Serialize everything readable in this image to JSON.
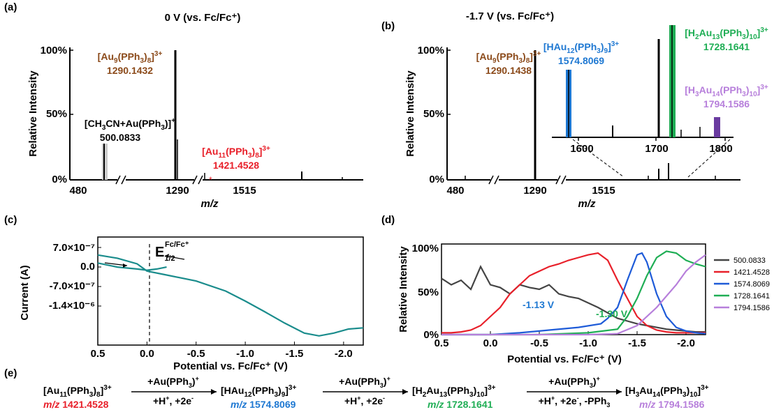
{
  "panels": {
    "a": {
      "letter": "(a)",
      "title": "0 V (vs. Fc/Fc⁺)",
      "ylabel": "Relative Intensity",
      "xlabel": "m/z",
      "yticks": [
        "100%",
        "50%",
        "0%"
      ],
      "xticks": [
        "480",
        "1290",
        "1515"
      ],
      "annotations": [
        {
          "formula": "[Au9(PPh3)8]3+",
          "mz": "1290.1432",
          "color": "#8B4A1A"
        },
        {
          "formula": "[CH3CN+Au(PPh3)]+",
          "mz": "500.0833",
          "color": "#000000"
        },
        {
          "formula": "[Au11(PPh3)8]3+",
          "mz": "1421.4528",
          "color": "#E8202A"
        }
      ]
    },
    "b": {
      "letter": "(b)",
      "title": "-1.7 V (vs. Fc/Fc⁺)",
      "ylabel": "Relative Intensity",
      "xlabel": "m/z",
      "yticks": [
        "100%",
        "50%",
        "0%"
      ],
      "xticks": [
        "480",
        "1290",
        "1515"
      ],
      "inset_xticks": [
        "1600",
        "1700",
        "1800"
      ],
      "annotations": [
        {
          "formula": "[Au9(PPh3)8]3+",
          "mz": "1290.1438",
          "color": "#8B4A1A"
        },
        {
          "formula": "[HAu12(PPh3)9]3+",
          "mz": "1574.8069",
          "color": "#1E78D2"
        },
        {
          "formula": "[H2Au13(PPh3)10]3+",
          "mz": "1728.1641",
          "color": "#1FAE55"
        },
        {
          "formula": "[H3Au14(PPh3)10]3+",
          "mz": "1794.1586",
          "color": "#B77FDB"
        }
      ]
    },
    "c": {
      "letter": "(c)",
      "ylabel": "Current (A)",
      "xlabel": "Potential vs. Fc/Fc⁺ (V)",
      "yticks": [
        "7.0×10⁻⁷",
        "0.0",
        "-7.0×10⁻⁷",
        "-1.4×10⁻⁶"
      ],
      "xticks": [
        "0.5",
        "0.0",
        "-0.5",
        "-1.0",
        "-1.5",
        "-2.0"
      ],
      "e_half": "E",
      "e_half_sub": "1/2",
      "e_half_sup": "Fc/Fc⁺",
      "line_color": "#1A8C8C"
    },
    "d": {
      "letter": "(d)",
      "ylabel": "Relative Intensity",
      "xlabel": "Potential vs. Fc/Fc⁺ (V)",
      "yticks": [
        "100%",
        "50%",
        "0%"
      ],
      "xticks": [
        "0.5",
        "0.0",
        "-0.5",
        "-1.0",
        "-1.5",
        "-2.0"
      ],
      "marker1": "-1.13 V",
      "marker2": "-1.30 V"
    },
    "e": {
      "letter": "(e)",
      "species": [
        {
          "formula": "[Au11(PPh3)8]3+",
          "mz_prefix": "m/z",
          "mz": "1421.4528",
          "color": "#E8202A"
        },
        {
          "formula": "[HAu12(PPh3)9]3+",
          "mz_prefix": "m/z",
          "mz": "1574.8069",
          "color": "#1E78D2"
        },
        {
          "formula": "[H2Au13(PPh3)10]3+",
          "mz_prefix": "m/z",
          "mz": "1728.1641",
          "color": "#1FAE55"
        },
        {
          "formula": "[H3Au14(PPh3)10]3+",
          "mz_prefix": "m/z",
          "mz": "1794.1586",
          "color": "#B77FDB"
        }
      ],
      "arrows": [
        {
          "top": "+Au(PPh3)+",
          "bottom": "+H+, +2e-"
        },
        {
          "top": "+Au(PPh3)+",
          "bottom": "+H+, +2e-"
        },
        {
          "top": "+Au(PPh3)+",
          "bottom": "+H+, +2e-, -PPh3"
        }
      ]
    }
  },
  "chart_data": [
    {
      "type": "bar",
      "panel": "a",
      "title": "0 V (vs. Fc/Fc⁺)",
      "xlabel": "m/z",
      "ylabel": "Relative Intensity",
      "peaks": [
        {
          "mz": 500.0833,
          "rel": 28
        },
        {
          "mz": 1290.1432,
          "rel": 100
        },
        {
          "mz": 1421.4528,
          "rel": 2
        },
        {
          "mz": 1660,
          "rel": 6
        }
      ]
    },
    {
      "type": "bar",
      "panel": "b",
      "title": "-1.7 V (vs. Fc/Fc⁺)",
      "xlabel": "m/z",
      "ylabel": "Relative Intensity",
      "peaks": [
        {
          "mz": 1290.1438,
          "rel": 100
        },
        {
          "mz": 1574.8069,
          "rel": 9
        },
        {
          "mz": 1705,
          "rel": 12
        },
        {
          "mz": 1728.1641,
          "rel": 24
        },
        {
          "mz": 1794.1586,
          "rel": 4
        }
      ]
    },
    {
      "type": "line",
      "panel": "c",
      "xlabel": "Potential vs. Fc/Fc⁺ (V)",
      "ylabel": "Current (A)",
      "series": [
        {
          "x": [
            0.5,
            0.3,
            0.1,
            0.0,
            -0.2,
            -0.5,
            -0.8,
            -1.0,
            -1.2,
            -1.4,
            -1.6,
            -1.75,
            -1.9,
            -2.05,
            -2.2
          ],
          "y": [
            5e-07,
            4.2e-07,
            2.8e-07,
            1e-07,
            0.0,
            -1.5e-07,
            -4e-07,
            -6.5e-07,
            -9.2e-07,
            -1.2e-06,
            -1.45e-06,
            -1.52e-06,
            -1.45e-06,
            -1.35e-06,
            -1.32e-06
          ]
        },
        {
          "x": [
            0.5,
            0.3,
            0.1,
            0.0,
            -0.1,
            -0.2
          ],
          "y": [
            3e-07,
            2e-07,
            1.5e-07,
            1.2e-07,
            1.5e-07,
            2e-07
          ]
        }
      ],
      "xlim": [
        0.5,
        -2.2
      ],
      "ylim": [
        -1.75e-06,
        9.5e-07
      ]
    },
    {
      "type": "line",
      "panel": "d",
      "xlabel": "Potential vs. Fc/Fc⁺ (V)",
      "ylabel": "Relative Intensity",
      "xlim": [
        0.5,
        -2.2
      ],
      "ylim": [
        0,
        100
      ],
      "series": [
        {
          "name": "500.0833",
          "color": "#444444",
          "x": [
            0.5,
            0.4,
            0.3,
            0.2,
            0.1,
            0.0,
            -0.1,
            -0.2,
            -0.3,
            -0.4,
            -0.5,
            -0.6,
            -0.7,
            -0.8,
            -0.9,
            -1.0,
            -1.1,
            -1.2,
            -1.3,
            -1.4,
            -1.5,
            -1.6,
            -1.7,
            -1.8,
            -1.9,
            -2.0,
            -2.1,
            -2.2
          ],
          "y": [
            62,
            55,
            60,
            50,
            75,
            55,
            52,
            45,
            55,
            52,
            50,
            55,
            45,
            42,
            40,
            35,
            30,
            24,
            18,
            15,
            12,
            10,
            8,
            6,
            5,
            4,
            3,
            3
          ]
        },
        {
          "name": "1421.4528",
          "color": "#E8202A",
          "x": [
            0.5,
            0.4,
            0.3,
            0.2,
            0.1,
            0.0,
            -0.1,
            -0.2,
            -0.3,
            -0.4,
            -0.5,
            -0.6,
            -0.7,
            -0.8,
            -0.9,
            -1.0,
            -1.1,
            -1.2,
            -1.3,
            -1.4,
            -1.5,
            -1.6,
            -1.7,
            -1.8,
            -1.9,
            -2.0,
            -2.1,
            -2.2
          ],
          "y": [
            2,
            2,
            3,
            5,
            10,
            20,
            30,
            45,
            55,
            65,
            70,
            75,
            78,
            82,
            85,
            88,
            90,
            82,
            60,
            40,
            20,
            10,
            5,
            3,
            2,
            2,
            2,
            2
          ]
        },
        {
          "name": "1574.8069",
          "color": "#1E5BD8",
          "x": [
            0.5,
            0.0,
            -0.3,
            -0.6,
            -0.9,
            -1.13,
            -1.2,
            -1.3,
            -1.4,
            -1.5,
            -1.55,
            -1.6,
            -1.7,
            -1.8,
            -1.9,
            -2.0,
            -2.1,
            -2.2
          ],
          "y": [
            0,
            0,
            2,
            5,
            8,
            12,
            18,
            30,
            60,
            88,
            90,
            80,
            45,
            20,
            8,
            4,
            2,
            1
          ]
        },
        {
          "name": "1728.1641",
          "color": "#1FAE55",
          "x": [
            0.5,
            0.0,
            -0.5,
            -1.0,
            -1.3,
            -1.4,
            -1.5,
            -1.6,
            -1.7,
            -1.8,
            -1.9,
            -2.0,
            -2.1,
            -2.2
          ],
          "y": [
            0,
            0,
            0,
            2,
            6,
            20,
            40,
            65,
            85,
            92,
            90,
            82,
            78,
            75
          ]
        },
        {
          "name": "1794.1586",
          "color": "#B77FDB",
          "x": [
            0.5,
            0.0,
            -0.5,
            -1.0,
            -1.3,
            -1.5,
            -1.7,
            -1.9,
            -2.0,
            -2.1,
            -2.2
          ],
          "y": [
            0,
            0,
            0,
            0,
            1,
            10,
            30,
            55,
            70,
            80,
            88
          ]
        }
      ]
    }
  ]
}
